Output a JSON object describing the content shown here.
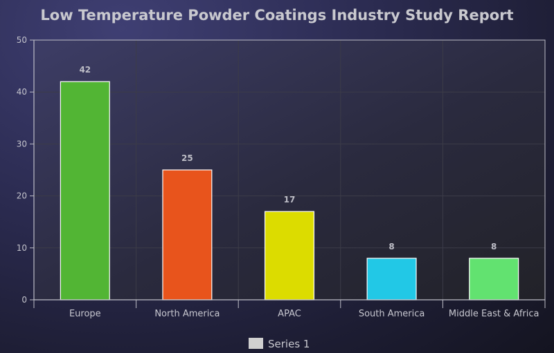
{
  "chart_data": {
    "type": "bar",
    "title": "Low Temperature Powder Coatings Industry Study Report",
    "categories": [
      "Europe",
      "North America",
      "APAC",
      "South America",
      "Middle East & Africa"
    ],
    "series": [
      {
        "name": "Series 1",
        "values": [
          42,
          25,
          17,
          8,
          8
        ],
        "colors": [
          "#52b534",
          "#e8541c",
          "#dcdc00",
          "#22c8e6",
          "#62e270"
        ]
      }
    ],
    "yticks": [
      0,
      10,
      20,
      30,
      40,
      50
    ],
    "ylim": [
      0,
      50
    ],
    "grid": true,
    "legend_position": "bottom",
    "legend_swatch_color": "#d0d0d0",
    "bar_outline_color": "#ffffff",
    "axis_color": "#bfbfc8",
    "grid_color": "#3c3c48"
  }
}
